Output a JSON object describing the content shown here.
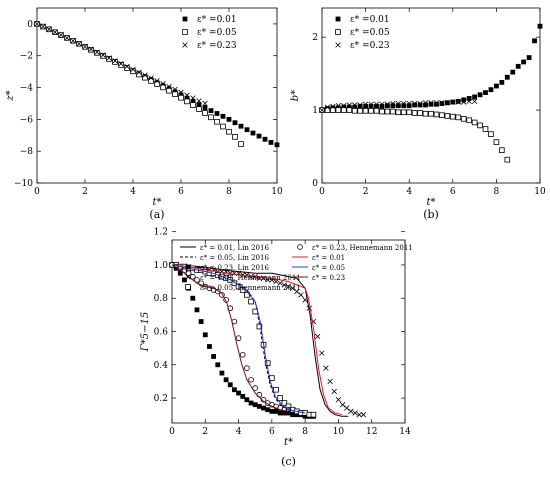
{
  "chart_data": [
    {
      "type": "scatter",
      "panel_label": "(a)",
      "xlabel": "t*",
      "ylabel": "z*",
      "xlim": [
        0,
        10
      ],
      "ylim": [
        -10,
        1
      ],
      "xticks": [
        "0",
        "2",
        "4",
        "6",
        "8",
        "10"
      ],
      "yticks": [
        "0",
        "−2",
        "−4",
        "−6",
        "−8",
        "−10"
      ],
      "legend_position": "top-right",
      "series": [
        {
          "name": "ε* =0.01",
          "marker": "filled-square",
          "x": [
            0,
            0.25,
            0.5,
            0.75,
            1,
            1.25,
            1.5,
            1.75,
            2,
            2.25,
            2.5,
            2.75,
            3,
            3.25,
            3.5,
            3.75,
            4,
            4.25,
            4.5,
            4.75,
            5,
            5.25,
            5.5,
            5.75,
            6,
            6.25,
            6.5,
            6.75,
            7,
            7.25,
            7.5,
            7.75,
            8,
            8.25,
            8.5,
            8.75,
            9,
            9.25,
            9.5,
            9.75,
            10
          ],
          "y": [
            0,
            -0.17,
            -0.34,
            -0.52,
            -0.7,
            -0.88,
            -1.06,
            -1.24,
            -1.42,
            -1.61,
            -1.8,
            -1.99,
            -2.18,
            -2.37,
            -2.56,
            -2.75,
            -2.94,
            -3.13,
            -3.32,
            -3.51,
            -3.7,
            -3.89,
            -4.08,
            -4.27,
            -4.46,
            -4.67,
            -4.87,
            -5.07,
            -5.26,
            -5.45,
            -5.63,
            -5.81,
            -6.0,
            -6.21,
            -6.43,
            -6.65,
            -6.86,
            -7.05,
            -7.25,
            -7.45,
            -7.6
          ]
        },
        {
          "name": "ε* =0.05",
          "marker": "open-square",
          "x": [
            0,
            0.25,
            0.5,
            0.75,
            1,
            1.25,
            1.5,
            1.75,
            2,
            2.25,
            2.5,
            2.75,
            3,
            3.25,
            3.5,
            3.75,
            4,
            4.25,
            4.5,
            4.75,
            5,
            5.25,
            5.5,
            5.75,
            6,
            6.25,
            6.5,
            6.75,
            7,
            7.25,
            7.5,
            7.75,
            8,
            8.25,
            8.5
          ],
          "y": [
            0,
            -0.17,
            -0.34,
            -0.52,
            -0.7,
            -0.88,
            -1.06,
            -1.25,
            -1.44,
            -1.63,
            -1.82,
            -2.01,
            -2.2,
            -2.39,
            -2.58,
            -2.78,
            -2.98,
            -3.18,
            -3.38,
            -3.58,
            -3.78,
            -3.99,
            -4.2,
            -4.42,
            -4.64,
            -4.87,
            -5.1,
            -5.35,
            -5.6,
            -5.87,
            -6.15,
            -6.45,
            -6.78,
            -7.1,
            -7.55
          ]
        },
        {
          "name": "ε* =0.23",
          "marker": "x-cross",
          "x": [
            0,
            0.25,
            0.5,
            0.75,
            1,
            1.25,
            1.5,
            1.75,
            2,
            2.25,
            2.5,
            2.75,
            3,
            3.25,
            3.5,
            3.75,
            4,
            4.25,
            4.5,
            4.75,
            5,
            5.25,
            5.5,
            5.75,
            6,
            6.25,
            6.5,
            6.75,
            7
          ],
          "y": [
            0,
            -0.17,
            -0.34,
            -0.52,
            -0.7,
            -0.88,
            -1.06,
            -1.24,
            -1.42,
            -1.6,
            -1.78,
            -1.96,
            -2.14,
            -2.32,
            -2.5,
            -2.68,
            -2.86,
            -3.04,
            -3.22,
            -3.4,
            -3.58,
            -3.76,
            -3.94,
            -4.12,
            -4.3,
            -4.48,
            -4.66,
            -4.84,
            -5.0
          ]
        }
      ]
    },
    {
      "type": "scatter",
      "panel_label": "(b)",
      "xlabel": "t*",
      "ylabel": "b*",
      "xlim": [
        0,
        10
      ],
      "ylim": [
        0,
        2.4
      ],
      "xticks": [
        "0",
        "2",
        "4",
        "6",
        "8",
        "10"
      ],
      "yticks": [
        "0",
        "1",
        "2"
      ],
      "legend_position": "top-left",
      "series": [
        {
          "name": "ε* =0.01",
          "marker": "filled-square",
          "x": [
            0,
            0.25,
            0.5,
            0.75,
            1,
            1.25,
            1.5,
            1.75,
            2,
            2.25,
            2.5,
            2.75,
            3,
            3.25,
            3.5,
            3.75,
            4,
            4.25,
            4.5,
            4.75,
            5,
            5.25,
            5.5,
            5.75,
            6,
            6.25,
            6.5,
            6.75,
            7,
            7.25,
            7.5,
            7.75,
            8,
            8.25,
            8.5,
            8.75,
            9,
            9.25,
            9.5,
            9.75,
            10
          ],
          "y": [
            1.0,
            1.02,
            1.03,
            1.03,
            1.04,
            1.04,
            1.04,
            1.05,
            1.05,
            1.05,
            1.05,
            1.05,
            1.06,
            1.06,
            1.06,
            1.06,
            1.06,
            1.07,
            1.07,
            1.07,
            1.08,
            1.08,
            1.09,
            1.1,
            1.11,
            1.12,
            1.14,
            1.16,
            1.18,
            1.21,
            1.24,
            1.28,
            1.33,
            1.38,
            1.45,
            1.52,
            1.6,
            1.66,
            1.72,
            1.95,
            2.15
          ]
        },
        {
          "name": "ε* =0.05",
          "marker": "open-square",
          "x": [
            0,
            0.25,
            0.5,
            0.75,
            1,
            1.25,
            1.5,
            1.75,
            2,
            2.25,
            2.5,
            2.75,
            3,
            3.25,
            3.5,
            3.75,
            4,
            4.25,
            4.5,
            4.75,
            5,
            5.25,
            5.5,
            5.75,
            6,
            6.25,
            6.5,
            6.75,
            7,
            7.25,
            7.5,
            7.75,
            8,
            8.25,
            8.5
          ],
          "y": [
            1.0,
            1.0,
            1.0,
            1.0,
            1.0,
            1.0,
            0.99,
            0.99,
            0.99,
            0.99,
            0.99,
            0.98,
            0.98,
            0.98,
            0.97,
            0.97,
            0.97,
            0.96,
            0.96,
            0.95,
            0.95,
            0.94,
            0.93,
            0.92,
            0.91,
            0.9,
            0.88,
            0.86,
            0.83,
            0.79,
            0.74,
            0.67,
            0.56,
            0.45,
            0.32
          ]
        },
        {
          "name": "ε* =0.23",
          "marker": "x-cross",
          "x": [
            0,
            0.25,
            0.5,
            0.75,
            1,
            1.25,
            1.5,
            1.75,
            2,
            2.25,
            2.5,
            2.75,
            3,
            3.25,
            3.5,
            3.75,
            4,
            4.25,
            4.5,
            4.75,
            5,
            5.25,
            5.5,
            5.75,
            6,
            6.25,
            6.5,
            6.75,
            7
          ],
          "y": [
            1.0,
            1.04,
            1.05,
            1.06,
            1.06,
            1.07,
            1.07,
            1.07,
            1.08,
            1.08,
            1.08,
            1.08,
            1.08,
            1.09,
            1.09,
            1.09,
            1.09,
            1.09,
            1.09,
            1.1,
            1.1,
            1.1,
            1.1,
            1.1,
            1.11,
            1.11,
            1.11,
            1.12,
            1.12
          ]
        }
      ]
    },
    {
      "type": "line",
      "panel_label": "(c)",
      "xlabel": "t*",
      "ylabel": "Γ*5−15",
      "xlim": [
        0,
        14
      ],
      "ylim": [
        0.05,
        1.15
      ],
      "xticks": [
        "0",
        "2",
        "4",
        "6",
        "8",
        "10",
        "12",
        "14"
      ],
      "yticks": [
        "0.2",
        "0.4",
        "0.6",
        "0.8",
        "1.0",
        "1.2"
      ],
      "legend_position": "top",
      "series": [
        {
          "name": "ε* = 0.01, Lin 2016",
          "style": "solid-black",
          "x": [
            0,
            0.5,
            1,
            1.5,
            2,
            2.5,
            3,
            3.5,
            4,
            4.5,
            5,
            5.5,
            6,
            6.5,
            7,
            7.5,
            8,
            8.3,
            8.6,
            8.9,
            9.2,
            9.5,
            9.8,
            10.2,
            10.6
          ],
          "y": [
            1.0,
            1.0,
            0.995,
            0.99,
            0.985,
            0.98,
            0.97,
            0.965,
            0.96,
            0.955,
            0.95,
            0.95,
            0.95,
            0.94,
            0.93,
            0.92,
            0.86,
            0.7,
            0.45,
            0.25,
            0.16,
            0.12,
            0.1,
            0.09,
            0.09
          ]
        },
        {
          "name": "ε* = 0.05, Lin 2016",
          "style": "dashed-black",
          "x": [
            0,
            0.5,
            1,
            1.5,
            2,
            2.5,
            3,
            3.5,
            4,
            4.5,
            5,
            5.3,
            5.6,
            5.9,
            6.2,
            6.5,
            7,
            7.5,
            8,
            8.5
          ],
          "y": [
            1.0,
            0.99,
            0.98,
            0.97,
            0.96,
            0.95,
            0.94,
            0.92,
            0.89,
            0.85,
            0.78,
            0.62,
            0.42,
            0.28,
            0.2,
            0.16,
            0.13,
            0.11,
            0.1,
            0.1
          ]
        },
        {
          "name": "ε* = 0.23, Lin 2016",
          "style": "filled-square",
          "x": [
            0,
            0.25,
            0.5,
            0.75,
            1,
            1.25,
            1.5,
            1.75,
            2,
            2.25,
            2.5,
            2.75,
            3,
            3.25,
            3.5,
            3.75,
            4,
            4.25,
            4.5,
            4.75,
            5,
            5.25,
            5.5,
            5.75,
            6,
            6.25,
            6.5,
            6.75,
            7,
            7.25,
            7.5,
            7.75,
            8,
            8.25,
            8.5
          ],
          "y": [
            1.0,
            0.98,
            0.95,
            0.91,
            0.86,
            0.8,
            0.73,
            0.66,
            0.58,
            0.51,
            0.45,
            0.4,
            0.35,
            0.31,
            0.28,
            0.25,
            0.23,
            0.21,
            0.19,
            0.17,
            0.16,
            0.15,
            0.14,
            0.13,
            0.12,
            0.12,
            0.11,
            0.11,
            0.11,
            0.1,
            0.1,
            0.1,
            0.09,
            0.09,
            0.09
          ]
        },
        {
          "name": "ε* = 0.01, Hennemann 2011",
          "style": "x-cross",
          "x": [
            0,
            0.25,
            0.5,
            0.75,
            1,
            1.25,
            1.5,
            1.75,
            2,
            2.25,
            2.5,
            2.75,
            3,
            3.25,
            3.5,
            3.75,
            4,
            4.25,
            4.5,
            4.75,
            5,
            5.25,
            5.5,
            5.75,
            6,
            6.25,
            6.5,
            6.75,
            7,
            7.25,
            7.5,
            7.75,
            8,
            8.25,
            8.5,
            8.75,
            9,
            9.25,
            9.5,
            9.75,
            10,
            10.25,
            10.5,
            10.75,
            11,
            11.25,
            11.5
          ],
          "y": [
            1.0,
            1.0,
            0.99,
            0.99,
            0.99,
            0.98,
            0.98,
            0.98,
            0.97,
            0.97,
            0.97,
            0.96,
            0.96,
            0.96,
            0.95,
            0.95,
            0.95,
            0.94,
            0.94,
            0.93,
            0.93,
            0.92,
            0.92,
            0.91,
            0.91,
            0.9,
            0.89,
            0.88,
            0.87,
            0.86,
            0.84,
            0.82,
            0.79,
            0.74,
            0.66,
            0.57,
            0.47,
            0.38,
            0.3,
            0.24,
            0.19,
            0.16,
            0.14,
            0.12,
            0.11,
            0.1,
            0.1
          ]
        },
        {
          "name": "ε* = 0.05, Hennemann 2011",
          "style": "open-square",
          "x": [
            0,
            0.25,
            0.5,
            0.75,
            1,
            1.25,
            1.5,
            1.75,
            2,
            2.25,
            2.5,
            2.75,
            3,
            3.25,
            3.5,
            3.75,
            4,
            4.25,
            4.5,
            4.75,
            5,
            5.25,
            5.5,
            5.75,
            6,
            6.25,
            6.5,
            6.75,
            7,
            7.25,
            7.5,
            7.75,
            8,
            8.25,
            8.5
          ],
          "y": [
            1.0,
            1.0,
            0.99,
            0.99,
            0.98,
            0.98,
            0.97,
            0.97,
            0.96,
            0.95,
            0.95,
            0.94,
            0.93,
            0.92,
            0.91,
            0.89,
            0.87,
            0.85,
            0.82,
            0.78,
            0.72,
            0.63,
            0.52,
            0.41,
            0.32,
            0.25,
            0.2,
            0.17,
            0.15,
            0.13,
            0.12,
            0.11,
            0.11,
            0.1,
            0.1
          ]
        },
        {
          "name": "ε* = 0.23, Hennemann 2011",
          "style": "open-circle",
          "x": [
            0,
            0.25,
            0.5,
            0.75,
            1,
            1.25,
            1.5,
            1.75,
            2,
            2.25,
            2.5,
            2.75,
            3,
            3.25,
            3.5,
            3.75,
            4,
            4.25,
            4.5,
            4.75,
            5,
            5.25,
            5.5,
            5.75,
            6,
            6.25,
            6.5,
            6.75,
            7
          ],
          "y": [
            1.0,
            0.99,
            0.98,
            0.97,
            0.95,
            0.93,
            0.91,
            0.89,
            0.87,
            0.86,
            0.85,
            0.84,
            0.82,
            0.79,
            0.74,
            0.66,
            0.56,
            0.46,
            0.38,
            0.31,
            0.26,
            0.22,
            0.19,
            0.17,
            0.16,
            0.15,
            0.14,
            0.13,
            0.13
          ]
        },
        {
          "name": "ε* = 0.01",
          "style": "solid-red",
          "color": "#e8131c",
          "x": [
            0,
            1,
            2,
            3,
            4,
            5,
            6,
            7,
            7.5,
            8,
            8.2,
            8.5,
            8.8,
            9.1,
            9.4,
            9.8,
            10.2
          ],
          "y": [
            1.0,
            0.99,
            0.97,
            0.955,
            0.94,
            0.93,
            0.92,
            0.9,
            0.88,
            0.86,
            0.8,
            0.62,
            0.38,
            0.22,
            0.14,
            0.11,
            0.1
          ]
        },
        {
          "name": "ε* = 0.05",
          "style": "solid-blue",
          "color": "#1f3bd8",
          "x": [
            0,
            0.5,
            1,
            1.5,
            2,
            2.5,
            3,
            3.5,
            4,
            4.5,
            5,
            5.3,
            5.6,
            5.9,
            6.2,
            6.6,
            7,
            7.5,
            8
          ],
          "y": [
            1.0,
            0.99,
            0.98,
            0.97,
            0.96,
            0.95,
            0.93,
            0.91,
            0.88,
            0.84,
            0.78,
            0.66,
            0.46,
            0.3,
            0.21,
            0.16,
            0.13,
            0.12,
            0.11
          ]
        },
        {
          "name": "ε* = 0.23",
          "style": "solid-darkred",
          "color": "#7a1010",
          "x": [
            0,
            0.5,
            1,
            1.5,
            2,
            2.5,
            3,
            3.3,
            3.6,
            3.9,
            4.2,
            4.5,
            5,
            5.5,
            6,
            6.5,
            7
          ],
          "y": [
            1.0,
            0.97,
            0.93,
            0.89,
            0.87,
            0.86,
            0.83,
            0.77,
            0.66,
            0.52,
            0.4,
            0.31,
            0.23,
            0.18,
            0.15,
            0.13,
            0.12
          ]
        }
      ]
    }
  ]
}
